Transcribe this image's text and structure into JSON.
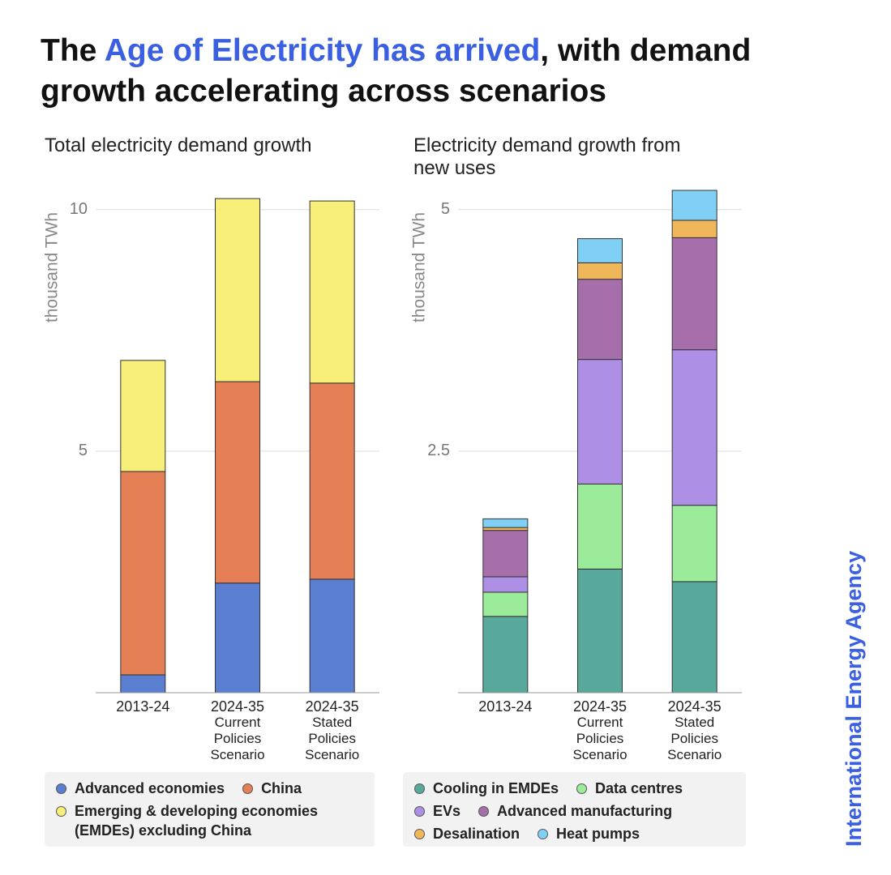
{
  "page_title": [
    "The ",
    "Age of Electricity has arrived",
    ", with demand growth accelerating across scenarios"
  ],
  "title_highlight_color": "#3a5fe0",
  "brand": "International Energy Agency",
  "chart_data": [
    {
      "type": "stacked_bar",
      "title": "Total electricity demand growth",
      "y_label": "thousand TWh",
      "categories": [
        "2013-24",
        "2024-35 Current Policies Scenario",
        "2024-35 Stated Policies Scenario"
      ],
      "series": [
        {
          "name": "Advanced economies",
          "color": "#5a7fd0",
          "values": [
            0.37,
            2.27,
            2.35
          ]
        },
        {
          "name": "China",
          "color": "#e57f55",
          "values": [
            4.21,
            4.17,
            4.06
          ]
        },
        {
          "name": "Emerging & developing economies (EMDEs) excluding China",
          "color": "#f8ef7a",
          "values": [
            2.3,
            3.79,
            3.77
          ]
        }
      ],
      "ylim": [
        0,
        10.5
      ],
      "yticks": [
        5,
        10
      ],
      "grid": true
    },
    {
      "type": "stacked_bar",
      "title": "Electricity demand growth from new uses",
      "y_label": "thousand TWh",
      "categories": [
        "2013-24",
        "2024-35 Current Policies Scenario",
        "2024-35 Stated Policies Scenario"
      ],
      "series": [
        {
          "name": "Cooling in EMDEs",
          "color": "#58a89c",
          "values": [
            0.79,
            1.28,
            1.15
          ]
        },
        {
          "name": "Data centres",
          "color": "#9beb9b",
          "values": [
            0.25,
            0.88,
            0.79
          ]
        },
        {
          "name": "EVs",
          "color": "#ad8fe6",
          "values": [
            0.16,
            1.29,
            1.61
          ]
        },
        {
          "name": "Advanced manufacturing",
          "color": "#a66fac",
          "values": [
            0.48,
            0.83,
            1.16
          ]
        },
        {
          "name": "Desalination",
          "color": "#f0b75a",
          "values": [
            0.03,
            0.17,
            0.18
          ]
        },
        {
          "name": "Heat pumps",
          "color": "#80d0f5",
          "values": [
            0.09,
            0.25,
            0.31
          ]
        }
      ],
      "ylim": [
        0,
        5.25
      ],
      "yticks": [
        2.5,
        5
      ],
      "grid": true
    }
  ]
}
